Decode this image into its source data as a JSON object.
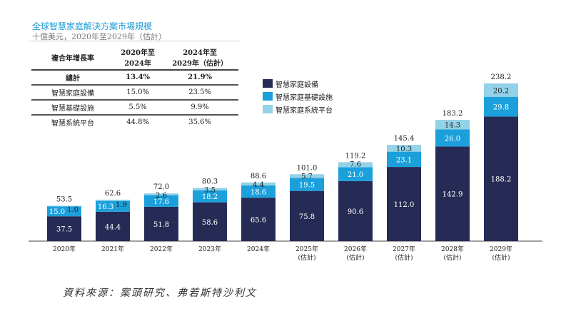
{
  "title": "全球智慧家庭解決方案市場規模",
  "subtitle": "十億美元，2020年至2029年（估計）",
  "cagr_table": {
    "header": [
      "複合年增長率",
      "2020年至\n2024年",
      "2024年至\n2029年（估計）"
    ],
    "rows": [
      [
        "總計",
        "13.4%",
        "21.9%"
      ],
      [
        "智慧家庭設備",
        "15.0%",
        "23.5%"
      ],
      [
        "智慧基礎設施",
        "5.5%",
        "9.9%"
      ],
      [
        "智慧系統平台",
        "44.8%",
        "35.6%"
      ]
    ]
  },
  "source": "資料來源：案頭研究、弗若斯特沙利文",
  "chart_data": {
    "type": "bar",
    "stacked": true,
    "title": "全球智慧家庭解決方案市場規模",
    "ylabel": "十億美元",
    "categories": [
      "2020年",
      "2021年",
      "2022年",
      "2023年",
      "2024年",
      "2025年\n(估計)",
      "2026年\n(估計)",
      "2027年\n(估計)",
      "2028年\n(估計)",
      "2029年\n(估計)"
    ],
    "series": [
      {
        "name": "智慧家庭設備",
        "color": "#262b55",
        "values": [
          37.5,
          44.4,
          51.8,
          58.6,
          65.6,
          75.8,
          90.6,
          112.0,
          142.9,
          188.2
        ]
      },
      {
        "name": "智慧家庭基礎設施",
        "color": "#1ba0dc",
        "values": [
          15.0,
          16.3,
          17.6,
          18.2,
          18.6,
          19.5,
          21.0,
          23.1,
          26.0,
          29.8
        ]
      },
      {
        "name": "智慧家庭系統平台",
        "color": "#93d2e8",
        "values": [
          1.0,
          1.9,
          2.6,
          3.5,
          4.4,
          5.7,
          7.6,
          10.3,
          14.3,
          20.2
        ]
      }
    ],
    "totals": [
      "53.5",
      "62.6",
      "72.0",
      "80.3",
      "88.6",
      "101.0",
      "119.2",
      "145.4",
      "183.2",
      "238.2"
    ],
    "legend": "top-center",
    "grid": false
  }
}
